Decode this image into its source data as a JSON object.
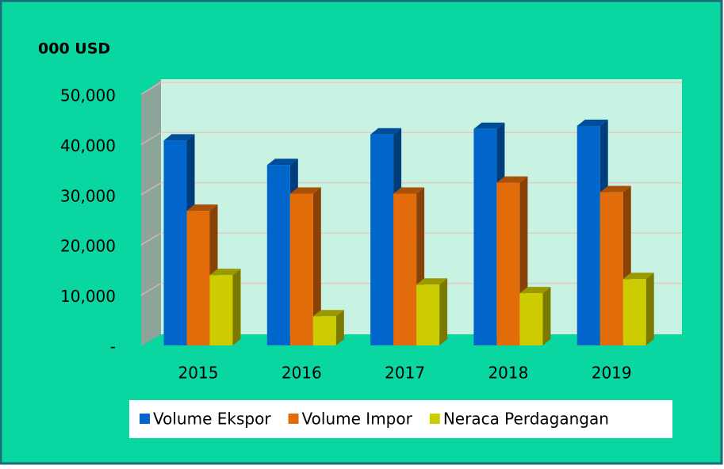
{
  "chart_data": {
    "type": "bar3d",
    "title": "000 USD",
    "categories": [
      "2015",
      "2016",
      "2017",
      "2018",
      "2019"
    ],
    "series": [
      {
        "name": "Volume Ekspor",
        "color": "#0066cc",
        "values": [
          40800,
          35900,
          42000,
          43100,
          43700
        ]
      },
      {
        "name": "Volume Impor",
        "color": "#e36c0a",
        "values": [
          26800,
          30200,
          30200,
          32400,
          30500
        ]
      },
      {
        "name": "Neraca Perdagangan",
        "color": "#cccc00",
        "values": [
          14000,
          5800,
          12100,
          10400,
          13200
        ]
      }
    ],
    "ylim": [
      0,
      50000
    ],
    "yticks": [
      {
        "value": 0,
        "label": "-"
      },
      {
        "value": 10000,
        "label": "10,000"
      },
      {
        "value": 20000,
        "label": "20,000"
      },
      {
        "value": 30000,
        "label": "30,000"
      },
      {
        "value": 40000,
        "label": "40,000"
      },
      {
        "value": 50000,
        "label": "50,000"
      }
    ],
    "grid": true,
    "legend": "bottom"
  }
}
